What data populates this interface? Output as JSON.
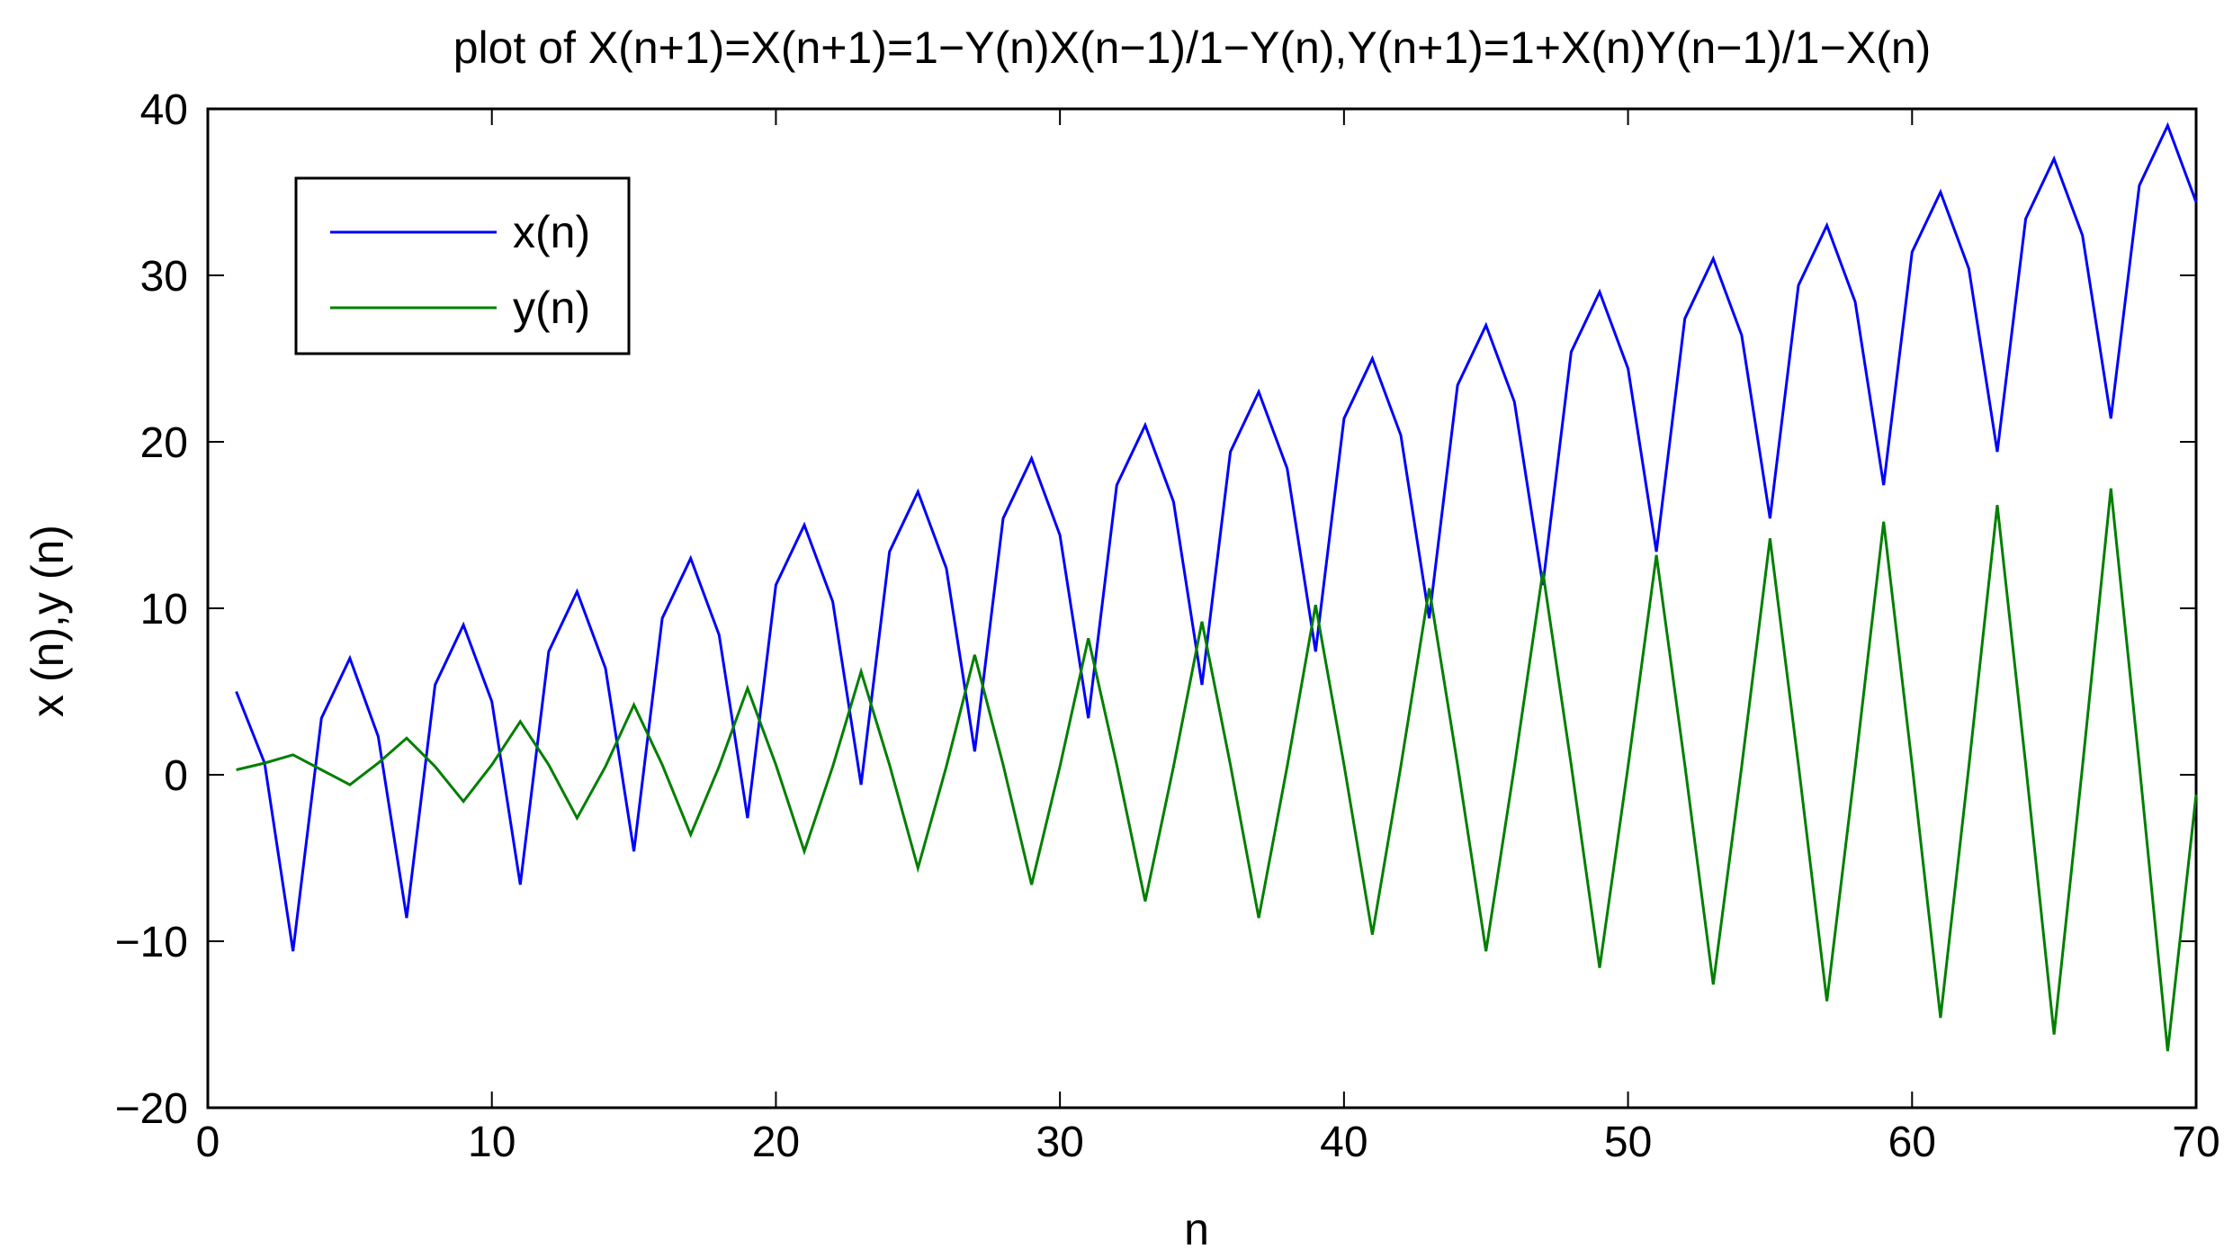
{
  "chart_data": {
    "type": "line",
    "title": "plot of X(n+1)=X(n+1)=1−Y(n)X(n−1)/1−Y(n),Y(n+1)=1+X(n)Y(n−1)/1−X(n)",
    "xlabel": "n",
    "ylabel": "x (n),y (n)",
    "xlim": [
      0,
      70
    ],
    "ylim": [
      -20,
      40
    ],
    "xticks": [
      0,
      10,
      20,
      30,
      40,
      50,
      60,
      70
    ],
    "xtick_labels": [
      "0",
      "10",
      "20",
      "30",
      "40",
      "50",
      "60",
      "70"
    ],
    "yticks": [
      -20,
      -10,
      0,
      10,
      20,
      30,
      40
    ],
    "ytick_labels": [
      "−20",
      "−10",
      "0",
      "10",
      "20",
      "30",
      "40"
    ],
    "grid": false,
    "legend_position": "top-left",
    "x": [
      1,
      2,
      3,
      4,
      5,
      6,
      7,
      8,
      9,
      10,
      11,
      12,
      13,
      14,
      15,
      16,
      17,
      18,
      19,
      20,
      21,
      22,
      23,
      24,
      25,
      26,
      27,
      28,
      29,
      30,
      31,
      32,
      33,
      34,
      35,
      36,
      37,
      38,
      39,
      40,
      41,
      42,
      43,
      44,
      45,
      46,
      47,
      48,
      49,
      50,
      51,
      52,
      53,
      54,
      55,
      56,
      57,
      58,
      59,
      60,
      61,
      62,
      63,
      64,
      65,
      66,
      67,
      68,
      69,
      70
    ],
    "series": [
      {
        "name": "x(n)",
        "color": "#0000ff",
        "values": [
          5,
          0.7,
          -10.6,
          3.4,
          7,
          2.3,
          -8.6,
          5.4,
          9,
          4.4,
          -6.6,
          7.4,
          11,
          6.4,
          -4.6,
          9.4,
          13,
          8.4,
          -2.6,
          11.4,
          15,
          10.4,
          -0.6,
          13.4,
          17,
          12.4,
          1.4,
          15.4,
          19,
          14.4,
          3.4,
          17.4,
          21,
          16.4,
          5.4,
          19.4,
          23,
          18.4,
          7.4,
          21.4,
          25,
          20.4,
          9.4,
          23.4,
          27,
          22.4,
          11.4,
          25.4,
          29,
          24.4,
          13.4,
          27.4,
          31,
          26.4,
          15.4,
          29.4,
          33,
          28.4,
          17.4,
          31.4,
          35,
          30.4,
          19.4,
          33.4,
          37,
          32.4,
          21.4,
          35.4,
          39,
          34.4
        ]
      },
      {
        "name": "y(n)",
        "color": "#007f00",
        "values": [
          0.3,
          0.7,
          1.2,
          0.3,
          -0.6,
          0.7,
          2.2,
          0.5,
          -1.6,
          0.6,
          3.2,
          0.6,
          -2.6,
          0.5,
          4.2,
          0.6,
          -3.6,
          0.5,
          5.2,
          0.6,
          -4.6,
          0.5,
          6.2,
          0.6,
          -5.6,
          0.5,
          7.2,
          0.6,
          -6.6,
          0.5,
          8.2,
          0.6,
          -7.6,
          0.5,
          9.2,
          0.6,
          -8.6,
          0.5,
          10.2,
          0.6,
          -9.6,
          0.5,
          11.2,
          0.6,
          -10.6,
          0.5,
          12.2,
          0.6,
          -11.6,
          0.5,
          13.2,
          0.6,
          -12.6,
          0.5,
          14.2,
          0.6,
          -13.6,
          0.5,
          15.2,
          0.6,
          -14.6,
          0.5,
          16.2,
          0.6,
          -15.6,
          0.5,
          17.2,
          0.6,
          -16.6,
          -1.2
        ]
      }
    ]
  }
}
